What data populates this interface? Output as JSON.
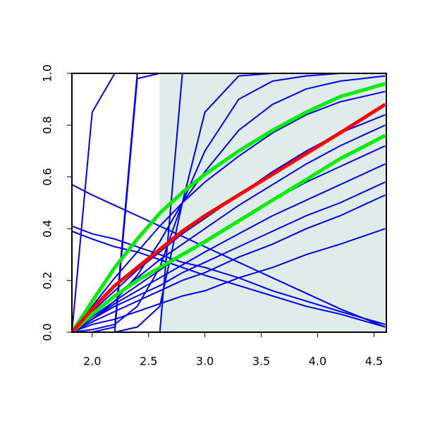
{
  "chart_data": {
    "type": "line",
    "xlim": [
      1.82,
      4.61
    ],
    "ylim": [
      0,
      1
    ],
    "xticks": [
      {
        "value": 2,
        "label": "2.0"
      },
      2.5,
      {
        "value": 3,
        "label": "3.0"
      },
      3.5,
      {
        "value": 4,
        "label": "4.0"
      },
      4.5
    ],
    "yticks": [
      {
        "value": 0,
        "label": "0.0"
      },
      0.2,
      0.4,
      0.6,
      0.8,
      {
        "value": 1,
        "label": "1.0"
      }
    ],
    "shaded_region": [
      2.6,
      4.61
    ],
    "shade_color": "#e0ecec",
    "x": [
      1.82,
      2.0,
      2.2,
      2.4,
      2.6,
      2.8,
      3.0,
      3.3,
      3.6,
      3.9,
      4.2,
      4.6
    ],
    "series": [
      {
        "color": "#0000ee",
        "values": [
          0,
          0.85,
          1,
          1,
          1,
          1,
          1,
          1,
          1,
          1,
          1,
          1
        ]
      },
      {
        "color": "#0000ee",
        "values": [
          0,
          0,
          0.02,
          1,
          1,
          1,
          1,
          1,
          1,
          1,
          1,
          1
        ]
      },
      {
        "color": "#0000ee",
        "values": [
          0,
          0,
          0,
          0.98,
          1,
          1,
          1,
          1,
          1,
          1,
          1,
          1
        ]
      },
      {
        "color": "#0000ee",
        "values": [
          0,
          0,
          0,
          0,
          0,
          1,
          1,
          1,
          1,
          1,
          1,
          1
        ]
      },
      {
        "color": "#0000ee",
        "values": [
          0.57,
          0.53,
          0.49,
          0.45,
          0.41,
          0.37,
          0.33,
          0.27,
          0.21,
          0.15,
          0.09,
          0.02
        ]
      },
      {
        "color": "#0000ee",
        "values": [
          0.41,
          0.38,
          0.36,
          0.33,
          0.3,
          0.27,
          0.25,
          0.21,
          0.16,
          0.12,
          0.08,
          0.03
        ]
      },
      {
        "color": "#0000ee",
        "values": [
          0.39,
          0.36,
          0.33,
          0.31,
          0.28,
          0.25,
          0.22,
          0.18,
          0.14,
          0.1,
          0.07,
          0.02
        ]
      },
      {
        "color": "#0000ee",
        "values": [
          0,
          0.03,
          0.05,
          0.08,
          0.11,
          0.14,
          0.16,
          0.21,
          0.25,
          0.3,
          0.34,
          0.4
        ]
      },
      {
        "color": "#0000ee",
        "values": [
          0,
          0.04,
          0.08,
          0.12,
          0.16,
          0.2,
          0.23,
          0.29,
          0.34,
          0.4,
          0.45,
          0.53
        ]
      },
      {
        "color": "#0000ee",
        "values": [
          0,
          0.05,
          0.1,
          0.14,
          0.18,
          0.23,
          0.27,
          0.33,
          0.39,
          0.45,
          0.5,
          0.58
        ]
      },
      {
        "color": "#0000ee",
        "values": [
          0,
          0.05,
          0.11,
          0.16,
          0.21,
          0.26,
          0.31,
          0.38,
          0.45,
          0.51,
          0.57,
          0.65
        ]
      },
      {
        "color": "#0000ee",
        "values": [
          0,
          0.06,
          0.12,
          0.18,
          0.24,
          0.3,
          0.35,
          0.43,
          0.51,
          0.58,
          0.64,
          0.72
        ]
      },
      {
        "color": "#0000ee",
        "values": [
          0,
          0.07,
          0.14,
          0.21,
          0.28,
          0.34,
          0.4,
          0.49,
          0.57,
          0.65,
          0.72,
          0.8
        ]
      },
      {
        "color": "#0000ee",
        "values": [
          0,
          0.08,
          0.16,
          0.24,
          0.31,
          0.38,
          0.44,
          0.53,
          0.62,
          0.7,
          0.77,
          0.84
        ]
      },
      {
        "color": "#0000ee",
        "values": [
          0,
          0,
          0,
          0.02,
          0.1,
          0.5,
          0.85,
          0.99,
          1,
          1,
          1,
          1
        ]
      },
      {
        "color": "#0000ee",
        "values": [
          0,
          0.01,
          0.03,
          0.1,
          0.25,
          0.5,
          0.7,
          0.9,
          0.97,
          0.99,
          1,
          1
        ]
      },
      {
        "color": "#0000ee",
        "values": [
          0,
          0.05,
          0.12,
          0.22,
          0.35,
          0.5,
          0.62,
          0.78,
          0.88,
          0.94,
          0.97,
          0.99
        ]
      },
      {
        "color": "#0000ee",
        "values": [
          0,
          0.1,
          0.21,
          0.31,
          0.41,
          0.5,
          0.58,
          0.68,
          0.77,
          0.84,
          0.89,
          0.93
        ]
      },
      {
        "color": "#00ee00",
        "emphasis": true,
        "values": [
          0,
          0.12,
          0.25,
          0.36,
          0.46,
          0.54,
          0.61,
          0.7,
          0.78,
          0.85,
          0.91,
          0.96
        ]
      },
      {
        "color": "#00ee00",
        "emphasis": true,
        "values": [
          0,
          0.07,
          0.14,
          0.2,
          0.25,
          0.3,
          0.35,
          0.43,
          0.51,
          0.59,
          0.67,
          0.76
        ]
      },
      {
        "color": "#ff0000",
        "emphasis": true,
        "values": [
          0,
          0.09,
          0.18,
          0.25,
          0.32,
          0.39,
          0.45,
          0.53,
          0.61,
          0.69,
          0.77,
          0.88
        ]
      }
    ]
  }
}
